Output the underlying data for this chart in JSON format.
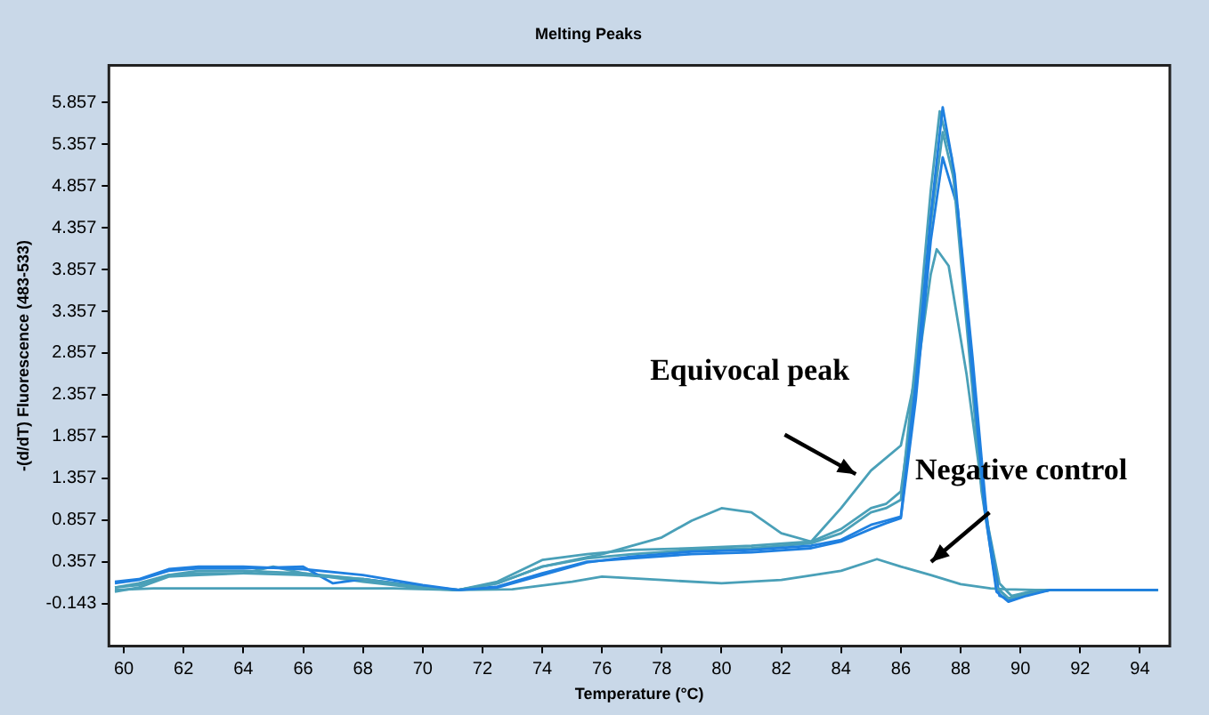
{
  "chart_data": {
    "type": "line",
    "title": "Melting Peaks",
    "xlabel": "Temperature (°C)",
    "ylabel": "-(d/dT) Fluorescence (483-533)",
    "xlim": [
      59.5,
      95
    ],
    "xticks": [
      60,
      62,
      64,
      66,
      68,
      70,
      72,
      74,
      76,
      78,
      80,
      82,
      84,
      86,
      88,
      90,
      92,
      94
    ],
    "ylim": [
      -0.65,
      6.3
    ],
    "yticks": [
      -0.143,
      0.357,
      0.857,
      1.357,
      1.857,
      2.357,
      2.857,
      3.357,
      3.857,
      4.357,
      4.857,
      5.357,
      5.857
    ],
    "grid": false,
    "legend": false,
    "marker": "none",
    "line_style": "solid",
    "series": [
      {
        "color": "#1f80e0",
        "x": [
          59.7,
          60.5,
          61.5,
          62.5,
          64,
          66,
          68,
          70,
          71.2,
          72.5,
          74,
          75.5,
          77,
          79,
          81,
          83,
          84,
          85,
          85.5,
          86,
          86.5,
          87,
          87.4,
          87.8,
          88.3,
          88.8,
          89.2,
          89.6,
          90.2,
          91,
          94.6
        ],
        "values": [
          0.12,
          0.15,
          0.27,
          0.3,
          0.3,
          0.27,
          0.2,
          0.08,
          0.02,
          0.05,
          0.2,
          0.35,
          0.42,
          0.48,
          0.5,
          0.55,
          0.62,
          0.8,
          0.85,
          0.9,
          2.5,
          4.5,
          5.8,
          5.0,
          3.0,
          1.0,
          0.0,
          -0.12,
          -0.05,
          0.02,
          0.02
        ]
      },
      {
        "color": "#4aa0b8",
        "x": [
          59.7,
          60.5,
          61.5,
          62.5,
          64,
          66,
          68,
          70,
          71.2,
          72.5,
          74,
          75.5,
          77,
          79,
          81,
          83,
          84,
          85,
          85.5,
          86,
          86.5,
          87,
          87.3,
          87.7,
          88.2,
          88.7,
          89.2,
          89.6,
          90.2,
          91,
          94.6
        ],
        "values": [
          0.05,
          0.1,
          0.2,
          0.22,
          0.22,
          0.2,
          0.15,
          0.05,
          0.02,
          0.1,
          0.3,
          0.4,
          0.45,
          0.5,
          0.52,
          0.58,
          0.7,
          0.95,
          1.0,
          1.1,
          2.8,
          4.8,
          5.75,
          5.2,
          3.2,
          1.2,
          0.05,
          -0.08,
          -0.03,
          0.02,
          0.02
        ]
      },
      {
        "color": "#1f80e0",
        "x": [
          59.7,
          60.5,
          61.5,
          62.5,
          64,
          66,
          67,
          68,
          70,
          71.2,
          72.5,
          74,
          75.5,
          77,
          79,
          81,
          83,
          84,
          85,
          85.5,
          86,
          86.5,
          87,
          87.4,
          87.9,
          88.4,
          88.9,
          89.3,
          89.7,
          90.3,
          91,
          94.6
        ],
        "values": [
          0.1,
          0.14,
          0.25,
          0.28,
          0.28,
          0.3,
          0.1,
          0.15,
          0.06,
          0.02,
          0.06,
          0.22,
          0.36,
          0.4,
          0.45,
          0.47,
          0.52,
          0.6,
          0.75,
          0.82,
          0.88,
          2.3,
          4.2,
          5.2,
          4.6,
          2.8,
          0.8,
          -0.05,
          -0.1,
          -0.02,
          0.02,
          0.02
        ]
      },
      {
        "color": "#4aa0b8",
        "x": [
          59.7,
          60.5,
          61.5,
          62.5,
          64,
          65,
          66,
          68,
          70,
          71.2,
          72.5,
          74,
          75.5,
          77,
          79,
          81,
          83,
          84,
          85,
          85.5,
          86,
          86.5,
          87,
          87.2,
          87.6,
          88.2,
          88.8,
          89.3,
          89.7,
          90.3,
          91,
          94.6
        ],
        "values": [
          0.0,
          0.05,
          0.18,
          0.2,
          0.22,
          0.3,
          0.22,
          0.12,
          0.04,
          0.02,
          0.12,
          0.38,
          0.45,
          0.5,
          0.52,
          0.55,
          0.6,
          0.75,
          1.0,
          1.05,
          1.2,
          2.5,
          3.8,
          4.1,
          3.9,
          2.6,
          1.0,
          0.1,
          -0.05,
          0,
          0.02,
          0.02
        ]
      },
      {
        "color": "#4aa0b8",
        "x": [
          59.7,
          60.5,
          61.5,
          62.5,
          64,
          66,
          68,
          70,
          71.2,
          72.5,
          74,
          76,
          78,
          79,
          80,
          81,
          82,
          83,
          84,
          85,
          86,
          86.5,
          87,
          87.4,
          87.8,
          88.3,
          88.8,
          89.2,
          89.6,
          90.2,
          91,
          94.6
        ],
        "values": [
          0.05,
          0.08,
          0.2,
          0.25,
          0.25,
          0.22,
          0.15,
          0.06,
          0.02,
          0.1,
          0.3,
          0.45,
          0.65,
          0.85,
          1.0,
          0.95,
          0.7,
          0.6,
          1.0,
          1.45,
          1.75,
          2.6,
          4.4,
          5.5,
          4.9,
          3.0,
          1.1,
          0.05,
          -0.08,
          -0.03,
          0.02,
          0.02
        ]
      },
      {
        "color": "#4aa0b8",
        "x": [
          59.7,
          61,
          63,
          65,
          67,
          69,
          71.2,
          73,
          75,
          76,
          78,
          80,
          82,
          84,
          85.2,
          86,
          87,
          88,
          89,
          89.5,
          90.5,
          94.6
        ],
        "values": [
          0.02,
          0.04,
          0.04,
          0.04,
          0.04,
          0.04,
          0.02,
          0.03,
          0.12,
          0.18,
          0.14,
          0.1,
          0.14,
          0.25,
          0.39,
          0.3,
          0.2,
          0.09,
          0.04,
          0.03,
          0.02,
          0.02
        ]
      }
    ],
    "annotations": [
      "Equivocal peak",
      "Negative control"
    ]
  }
}
